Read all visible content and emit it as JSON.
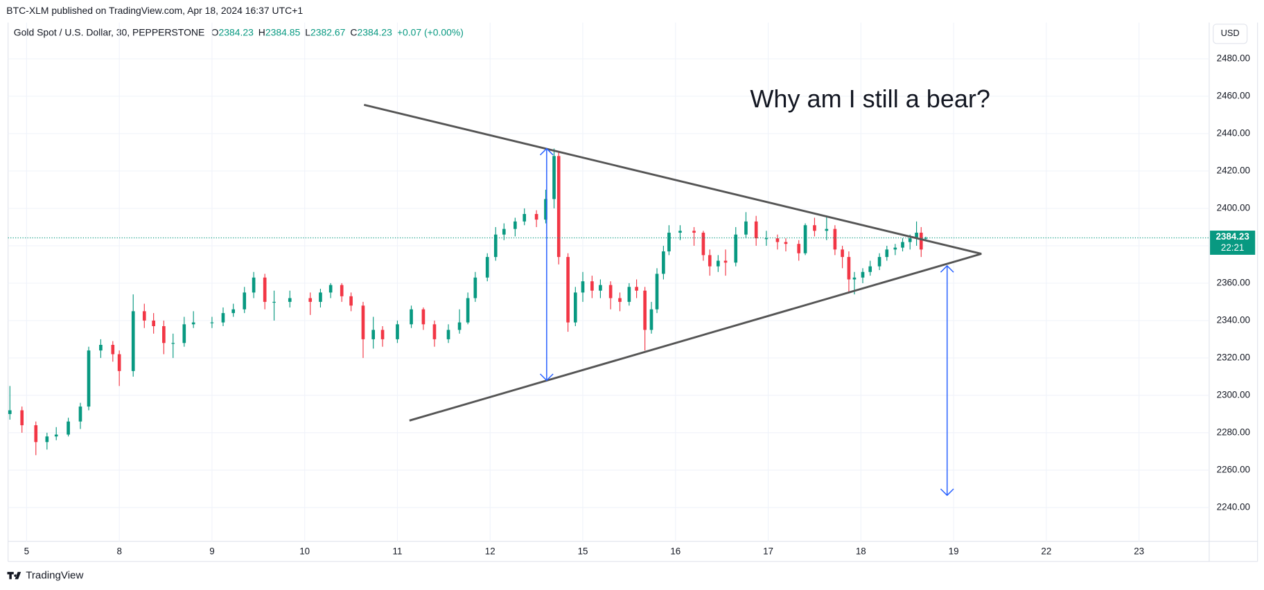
{
  "chart_data": {
    "type": "candlestick",
    "published": "BTC-XLM published on TradingView.com, Apr 18, 2024 16:37 UTC+1",
    "title": "Gold Spot / U.S. Dollar, 30, PEPPERSTONE",
    "ohlc_labels": [
      "O",
      "H",
      "L",
      "C"
    ],
    "change": "+0.07 (+0.00%)",
    "currency": "USD",
    "countdown": "22:21",
    "brand": "TradingView",
    "up_color": "#089981",
    "down_color": "#f23645",
    "grid": true,
    "xlim": [
      -0.2,
      12.757
    ],
    "ylim": [
      2221.9,
      2499.4
    ],
    "xticks": [
      {
        "value": 0,
        "label": "5"
      },
      {
        "value": 1,
        "label": "8"
      },
      {
        "value": 2,
        "label": "9"
      },
      {
        "value": 3,
        "label": "10"
      },
      {
        "value": 4,
        "label": "11"
      },
      {
        "value": 5,
        "label": "12"
      },
      {
        "value": 6,
        "label": "15"
      },
      {
        "value": 7,
        "label": "16"
      },
      {
        "value": 8,
        "label": "17"
      },
      {
        "value": 9,
        "label": "18"
      },
      {
        "value": 10,
        "label": "19"
      },
      {
        "value": 11,
        "label": "22"
      },
      {
        "value": 12,
        "label": "23"
      }
    ],
    "yticks": [
      {
        "value": 2240,
        "label": "2240.00"
      },
      {
        "value": 2260,
        "label": "2260.00"
      },
      {
        "value": 2280,
        "label": "2280.00"
      },
      {
        "value": 2300,
        "label": "2300.00"
      },
      {
        "value": 2320,
        "label": "2320.00"
      },
      {
        "value": 2340,
        "label": "2340.00"
      },
      {
        "value": 2360,
        "label": "2360.00"
      },
      {
        "value": 2380,
        "label": "2380.00"
      },
      {
        "value": 2400,
        "label": "2400.00"
      },
      {
        "value": 2420,
        "label": "2420.00"
      },
      {
        "value": 2440,
        "label": "2440.00"
      },
      {
        "value": 2460,
        "label": "2460.00"
      },
      {
        "value": 2480,
        "label": "2480.00"
      }
    ],
    "x": [
      -0.18,
      -0.05,
      0.1,
      0.22,
      0.32,
      0.45,
      0.58,
      0.67,
      0.8,
      0.93,
      1.0,
      1.15,
      1.27,
      1.37,
      1.48,
      1.58,
      1.7,
      1.8,
      2.0,
      2.12,
      2.23,
      2.35,
      2.45,
      2.57,
      2.67,
      2.84,
      3.06,
      3.17,
      3.28,
      3.4,
      3.5,
      3.63,
      3.74,
      3.84,
      4.0,
      4.15,
      4.28,
      4.4,
      4.55,
      4.67,
      4.76,
      4.84,
      4.97,
      5.06,
      5.15,
      5.27,
      5.37,
      5.5,
      5.6,
      5.69,
      5.74,
      5.84,
      5.92,
      6.0,
      6.1,
      6.19,
      6.3,
      6.4,
      6.5,
      6.58,
      6.67,
      6.74,
      6.8,
      6.87,
      6.93,
      7.05,
      7.2,
      7.3,
      7.37,
      7.46,
      7.54,
      7.65,
      7.76,
      7.87,
      7.98,
      8.1,
      8.19,
      8.33,
      8.4,
      8.5,
      8.63,
      8.72,
      8.8,
      8.87,
      8.93,
      9.02,
      9.1,
      9.2,
      9.28,
      9.37,
      9.45,
      9.53,
      9.6,
      9.65,
      9.7
    ],
    "open": [
      2290,
      2292,
      2284,
      2275,
      2278,
      2279,
      2286,
      2294,
      2324,
      2327,
      2322,
      2313,
      2345,
      2340,
      2337,
      2328,
      2328,
      2338,
      2339,
      2339,
      2344,
      2346,
      2355,
      2363,
      2350,
      2350,
      2352,
      2350,
      2355,
      2359,
      2353,
      2348,
      2330,
      2335,
      2330,
      2338,
      2346,
      2338,
      2330,
      2335,
      2339,
      2352,
      2363,
      2374,
      2386,
      2389,
      2393,
      2397,
      2394,
      2405,
      2428,
      2374,
      2339,
      2355,
      2361,
      2356,
      2359,
      2352,
      2350,
      2358,
      2356,
      2335,
      2346,
      2365,
      2377,
      2387,
      2388,
      2387,
      2375,
      2369,
      2372,
      2371,
      2386,
      2393,
      2384,
      2384,
      2382,
      2381,
      2376,
      2391,
      2388,
      2389,
      2378,
      2374,
      2362,
      2363,
      2366,
      2369,
      2374,
      2378,
      2379,
      2382,
      2384,
      2387,
      2384.23
    ],
    "high": [
      2305,
      2294,
      2286,
      2280,
      2283,
      2288,
      2296,
      2326,
      2330,
      2329,
      2324,
      2354,
      2349,
      2344,
      2340,
      2333,
      2342,
      2345,
      2342,
      2347,
      2349,
      2358,
      2366,
      2365,
      2356,
      2356,
      2355,
      2357,
      2360,
      2360,
      2355,
      2350,
      2342,
      2337,
      2340,
      2348,
      2347,
      2340,
      2338,
      2346,
      2355,
      2366,
      2376,
      2390,
      2392,
      2395,
      2400,
      2399,
      2410,
      2432,
      2430,
      2376,
      2358,
      2366,
      2364,
      2362,
      2361,
      2355,
      2360,
      2362,
      2358,
      2350,
      2368,
      2380,
      2391,
      2391,
      2390,
      2388,
      2378,
      2375,
      2378,
      2390,
      2398,
      2396,
      2388,
      2386,
      2384,
      2383,
      2392,
      2395,
      2396,
      2391,
      2380,
      2377,
      2366,
      2368,
      2372,
      2376,
      2380,
      2381,
      2384,
      2386,
      2393,
      2390,
      2384.85
    ],
    "low": [
      2287,
      2280,
      2268,
      2271,
      2276,
      2278,
      2282,
      2292,
      2320,
      2318,
      2305,
      2310,
      2336,
      2333,
      2322,
      2320,
      2326,
      2336,
      2336,
      2337,
      2342,
      2344,
      2352,
      2346,
      2340,
      2347,
      2343,
      2347,
      2352,
      2350,
      2345,
      2320,
      2325,
      2326,
      2328,
      2336,
      2335,
      2326,
      2328,
      2333,
      2338,
      2350,
      2361,
      2372,
      2383,
      2385,
      2391,
      2390,
      2392,
      2400,
      2370,
      2334,
      2337,
      2350,
      2352,
      2352,
      2346,
      2345,
      2348,
      2352,
      2324,
      2333,
      2344,
      2362,
      2375,
      2383,
      2380,
      2372,
      2364,
      2366,
      2364,
      2369,
      2384,
      2380,
      2380,
      2378,
      2377,
      2372,
      2375,
      2385,
      2383,
      2375,
      2368,
      2355,
      2354,
      2360,
      2364,
      2367,
      2372,
      2375,
      2377,
      2378,
      2380,
      2374,
      2382.67
    ],
    "close": [
      2292,
      2284,
      2275,
      2278,
      2279,
      2286,
      2294,
      2324,
      2327,
      2322,
      2313,
      2345,
      2340,
      2337,
      2328,
      2328,
      2338,
      2339,
      2339,
      2344,
      2346,
      2355,
      2363,
      2350,
      2350,
      2352,
      2350,
      2355,
      2359,
      2353,
      2348,
      2330,
      2335,
      2330,
      2338,
      2346,
      2338,
      2330,
      2335,
      2339,
      2352,
      2363,
      2374,
      2386,
      2389,
      2393,
      2397,
      2394,
      2405,
      2428,
      2374,
      2339,
      2355,
      2361,
      2356,
      2359,
      2352,
      2350,
      2358,
      2356,
      2335,
      2346,
      2365,
      2377,
      2387,
      2388,
      2387,
      2375,
      2369,
      2372,
      2371,
      2386,
      2393,
      2384,
      2384,
      2382,
      2381,
      2376,
      2391,
      2388,
      2389,
      2378,
      2374,
      2362,
      2363,
      2366,
      2369,
      2374,
      2378,
      2379,
      2382,
      2384,
      2387,
      2378,
      2384.23
    ],
    "trendlines": [
      {
        "x1": 3.64,
        "y1": 2455.4,
        "x2": 10.3,
        "y2": 2375.7
      },
      {
        "x1": 4.13,
        "y1": 2286.5,
        "x2": 10.3,
        "y2": 2375.7
      }
    ],
    "arrows": [
      {
        "x": 5.61,
        "y1": 2432,
        "y2": 2308
      },
      {
        "x": 9.93,
        "y1": 2369.3,
        "y2": 2246.5
      }
    ],
    "annotation": {
      "text": "Why am I still a bear?",
      "x": 9.1,
      "y": 2457.6
    }
  }
}
